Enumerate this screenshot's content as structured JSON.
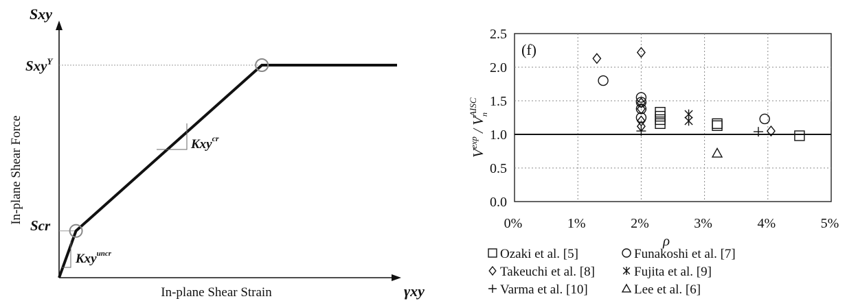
{
  "chart_data": [
    {
      "type": "line",
      "title": "",
      "xlabel": "In-plane Shear Strain",
      "ylabel": "In-plane Shear Force",
      "x_axis_symbol": "γxy",
      "y_axis_symbol": "Sxy",
      "y_tick_labels": [
        {
          "base": "Sxy",
          "sup": "Y"
        },
        {
          "base": "Scr",
          "sup": ""
        }
      ],
      "annotations": [
        {
          "base": "Kxy",
          "sup": "cr"
        },
        {
          "base": "Kxy",
          "sup": "uncr"
        }
      ],
      "series": [
        {
          "x": [
            0,
            0.05,
            0.6,
            1.0
          ],
          "y": [
            0,
            0.22,
            1.0,
            1.0
          ]
        }
      ],
      "marked_points": [
        {
          "x": 0.05,
          "y": 0.22
        },
        {
          "x": 0.6,
          "y": 1.0
        }
      ]
    },
    {
      "type": "scatter",
      "panel_label": "(f)",
      "title": "",
      "xlabel": "ρ",
      "ylabel": "V exp / V n AISC",
      "ylabel_parts": {
        "a": "V",
        "a_sup": "exp",
        "sep": " / ",
        "b": "V",
        "b_sub": "n",
        "b_sup": "AISC"
      },
      "xlim": [
        0,
        5
      ],
      "ylim": [
        0,
        2.5
      ],
      "x_ticks": [
        "0%",
        "1%",
        "2%",
        "3%",
        "4%",
        "5%"
      ],
      "y_ticks": [
        "0.0",
        "0.5",
        "1.0",
        "1.5",
        "2.0",
        "2.5"
      ],
      "grid": "dotted",
      "reference_line": 1.0,
      "legend_position": "bottom",
      "series": [
        {
          "name": "Ozaki et al. [5]",
          "marker": "square",
          "x": [
            2.3,
            2.3,
            2.3,
            2.3,
            3.2,
            3.2,
            4.5
          ],
          "y": [
            1.33,
            1.27,
            1.22,
            1.16,
            1.16,
            1.13,
            0.98
          ]
        },
        {
          "name": "Funakoshi et al. [7]",
          "marker": "circle",
          "x": [
            1.4,
            2.0,
            2.0,
            2.0,
            2.0,
            3.95
          ],
          "y": [
            1.8,
            1.55,
            1.48,
            1.38,
            1.25,
            1.23
          ]
        },
        {
          "name": "Takeuchi et al. [8]",
          "marker": "diamond",
          "x": [
            1.3,
            2.0,
            2.0,
            2.0,
            2.0,
            2.0,
            4.05
          ],
          "y": [
            2.13,
            2.22,
            1.47,
            1.38,
            1.2,
            1.12,
            1.05
          ]
        },
        {
          "name": "Fujita et al. [9]",
          "marker": "asterisk",
          "x": [
            2.75,
            2.75
          ],
          "y": [
            1.3,
            1.2
          ]
        },
        {
          "name": "Varma et al. [10]",
          "marker": "plus",
          "x": [
            2.0,
            3.85
          ],
          "y": [
            1.05,
            1.04
          ]
        },
        {
          "name": "Lee et al. [6]",
          "marker": "triangle",
          "x": [
            3.2
          ],
          "y": [
            0.72
          ]
        }
      ]
    }
  ]
}
